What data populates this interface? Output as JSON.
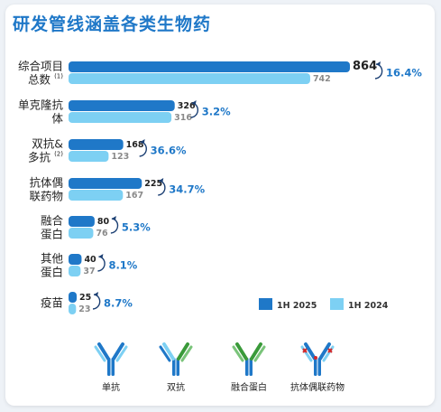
{
  "page": {
    "title": "研发管线涵盖各类生物药"
  },
  "chart_data": {
    "type": "bar",
    "orientation": "horizontal",
    "categories": [
      {
        "lines": [
          "综合项目",
          "总数"
        ],
        "footnote": "(1)"
      },
      {
        "lines": [
          "单克隆抗",
          "体"
        ],
        "footnote": ""
      },
      {
        "lines": [
          "双抗&",
          "多抗"
        ],
        "footnote": "(2)"
      },
      {
        "lines": [
          "抗体偶",
          "联药物"
        ],
        "footnote": ""
      },
      {
        "lines": [
          "融合",
          "蛋白"
        ],
        "footnote": ""
      },
      {
        "lines": [
          "其他",
          "蛋白"
        ],
        "footnote": ""
      },
      {
        "lines": [
          "疫苗"
        ],
        "footnote": ""
      }
    ],
    "series": [
      {
        "name": "1H 2025",
        "color": "#1f78c8",
        "values": [
          864,
          326,
          168,
          225,
          80,
          40,
          25
        ]
      },
      {
        "name": "1H 2024",
        "color": "#7dd0f3",
        "values": [
          742,
          316,
          123,
          167,
          76,
          37,
          23
        ]
      }
    ],
    "growth_labels": [
      "16.4%",
      "3.2%",
      "36.6%",
      "34.7%",
      "5.3%",
      "8.1%",
      "8.7%"
    ],
    "xlim": [
      0,
      864
    ],
    "legend_position": "bottom-right",
    "grid": false
  },
  "icons": [
    {
      "label": "单抗",
      "name": "monoclonal-antibody-icon"
    },
    {
      "label": "双抗",
      "name": "bispecific-antibody-icon"
    },
    {
      "label": "融合蛋白",
      "name": "fusion-protein-icon"
    },
    {
      "label": "抗体偶联药物",
      "name": "adc-icon"
    }
  ]
}
